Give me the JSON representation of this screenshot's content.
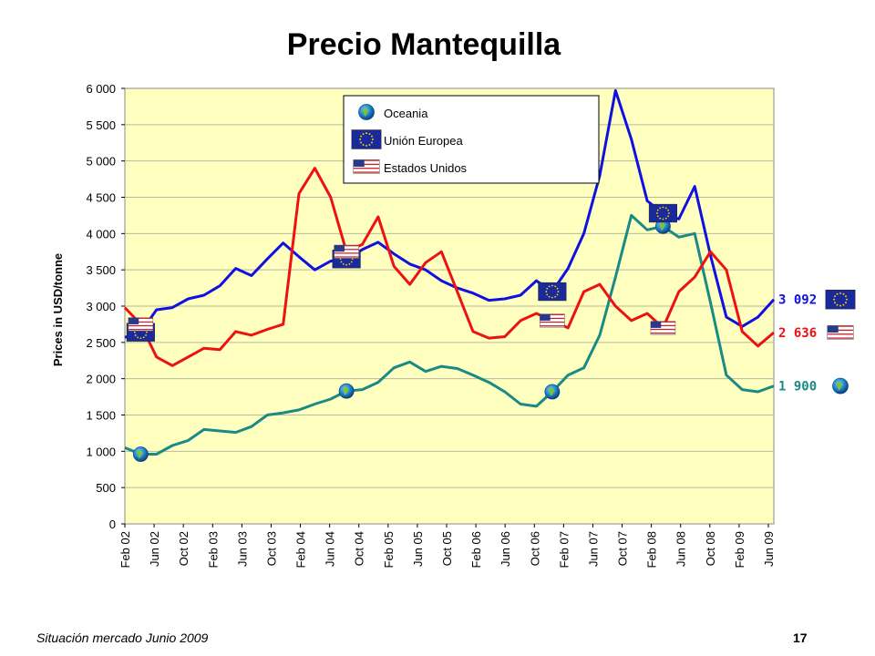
{
  "footer": {
    "source": "Situación mercado Junio 2009",
    "page_number": "17"
  },
  "chart_data": {
    "type": "line",
    "title": "Precio Mantequilla",
    "xlabel": "",
    "ylabel": "Prices in USD/tonne",
    "ylim": [
      0,
      6000
    ],
    "y_ticks": [
      "0",
      "500",
      "1 000",
      "1 500",
      "2 000",
      "2 500",
      "3 000",
      "3 500",
      "4 000",
      "4 500",
      "5 000",
      "5 500",
      "6 000"
    ],
    "x_tick_labels": [
      "Feb 02",
      "Jun 02",
      "Oct 02",
      "Feb 03",
      "Jun 03",
      "Oct 03",
      "Feb 04",
      "Jun 04",
      "Oct 04",
      "Feb 05",
      "Jun 05",
      "Oct 05",
      "Feb 06",
      "Jun 06",
      "Oct 06",
      "Feb 07",
      "Jun 07",
      "Oct 07",
      "Feb 08",
      "Jun 08",
      "Oct 08",
      "Feb 09",
      "Jun 09"
    ],
    "legend_position": "top-center",
    "background_color": "#ffffc0",
    "series": [
      {
        "name": "Oceania",
        "color": "#1a8a84",
        "icon": "globe-icon",
        "end_label": "1 900",
        "values": [
          1050,
          960,
          960,
          1080,
          1150,
          1300,
          1280,
          1260,
          1340,
          1500,
          1530,
          1570,
          1650,
          1720,
          1830,
          1850,
          1950,
          2150,
          2230,
          2100,
          2170,
          2140,
          2050,
          1950,
          1820,
          1650,
          1620,
          1820,
          2050,
          2150,
          2600,
          3400,
          4250,
          4050,
          4100,
          3950,
          4000,
          3050,
          2050,
          1850,
          1820,
          1900
        ]
      },
      {
        "name": "Unión Europea",
        "color": "#1010e0",
        "icon": "eu-flag-icon",
        "end_label": "3 092",
        "values": [
          2570,
          2640,
          2950,
          2980,
          3100,
          3150,
          3280,
          3520,
          3420,
          3650,
          3870,
          3680,
          3500,
          3620,
          3650,
          3780,
          3880,
          3720,
          3580,
          3500,
          3350,
          3250,
          3180,
          3080,
          3100,
          3150,
          3350,
          3200,
          3520,
          4000,
          4800,
          5970,
          5300,
          4450,
          4280,
          4200,
          4650,
          3700,
          2850,
          2720,
          2850,
          3092
        ]
      },
      {
        "name": "Estados Unidos",
        "color": "#ee1111",
        "icon": "us-flag-icon",
        "end_label": "2 636",
        "values": [
          2980,
          2750,
          2300,
          2180,
          2300,
          2420,
          2400,
          2650,
          2600,
          2680,
          2750,
          4550,
          4900,
          4500,
          3750,
          3850,
          4230,
          3550,
          3300,
          3600,
          3750,
          3200,
          2650,
          2560,
          2580,
          2800,
          2900,
          2800,
          2700,
          3200,
          3300,
          3000,
          2800,
          2900,
          2700,
          3200,
          3400,
          3750,
          3500,
          2650,
          2450,
          2636
        ]
      }
    ]
  }
}
